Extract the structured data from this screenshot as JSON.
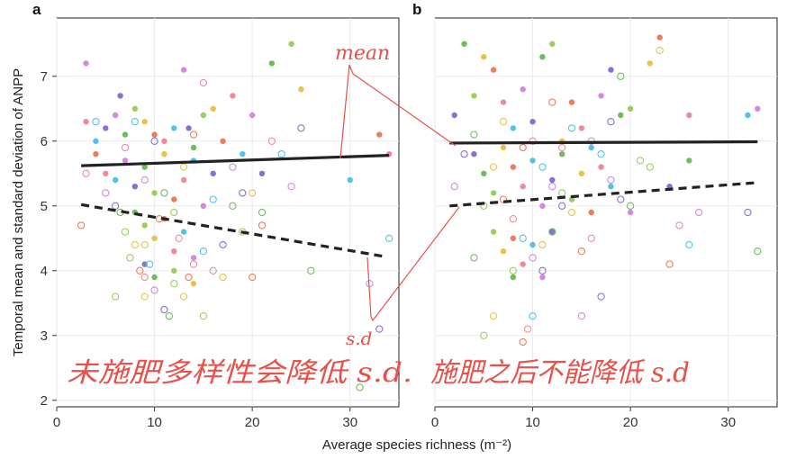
{
  "chart_data": [
    {
      "type": "scatter",
      "panel_label": "a",
      "xlim": [
        0,
        35
      ],
      "ylim": [
        1.9,
        7.9
      ],
      "xticks": [
        "0",
        "10",
        "20",
        "30"
      ],
      "yticks": [
        "2",
        "3",
        "4",
        "5",
        "6",
        "7"
      ],
      "grid": true,
      "series": [
        {
          "style": "filled",
          "points": [
            [
              3,
              6.3
            ],
            [
              4,
              6.0
            ],
            [
              6,
              6.4
            ],
            [
              6.5,
              6.7
            ],
            [
              7,
              6.1
            ],
            [
              8,
              6.5
            ],
            [
              9,
              6.3
            ],
            [
              10,
              6.1
            ],
            [
              11,
              6.0
            ],
            [
              12,
              6.2
            ],
            [
              13,
              7.1
            ],
            [
              13.5,
              6.2
            ],
            [
              14,
              5.9
            ],
            [
              15,
              6.4
            ],
            [
              16,
              6.5
            ],
            [
              17,
              6.0
            ],
            [
              18,
              6.7
            ],
            [
              19,
              5.8
            ],
            [
              20,
              6.4
            ],
            [
              21,
              5.5
            ],
            [
              22,
              7.2
            ],
            [
              24,
              7.5
            ],
            [
              25,
              6.8
            ],
            [
              4,
              5.8
            ],
            [
              5,
              5.5
            ],
            [
              6,
              5.4
            ],
            [
              7,
              5.7
            ],
            [
              8,
              5.3
            ],
            [
              9,
              5.6
            ],
            [
              10,
              5.2
            ],
            [
              11,
              5.8
            ],
            [
              12,
              5.1
            ],
            [
              13,
              5.4
            ],
            [
              14,
              5.7
            ],
            [
              15,
              5.0
            ],
            [
              16,
              5.5
            ],
            [
              8,
              4.9
            ],
            [
              9,
              4.7
            ],
            [
              10,
              4.5
            ],
            [
              11,
              4.8
            ],
            [
              12,
              4.3
            ],
            [
              13,
              4.6
            ],
            [
              14,
              4.2
            ],
            [
              9,
              4.1
            ],
            [
              10,
              3.9
            ],
            [
              12,
              4.0
            ],
            [
              14,
              3.8
            ],
            [
              33,
              6.1
            ],
            [
              34,
              5.8
            ],
            [
              30,
              5.4
            ],
            [
              3,
              7.2
            ],
            [
              5,
              6.2
            ]
          ]
        },
        {
          "style": "open",
          "points": [
            [
              2.5,
              4.7
            ],
            [
              3,
              5.5
            ],
            [
              4,
              6.3
            ],
            [
              5,
              5.2
            ],
            [
              6,
              5.0
            ],
            [
              6.5,
              4.9
            ],
            [
              7,
              4.6
            ],
            [
              8,
              4.4
            ],
            [
              8.5,
              4.0
            ],
            [
              9,
              3.9
            ],
            [
              9.5,
              4.1
            ],
            [
              10,
              3.7
            ],
            [
              11,
              3.4
            ],
            [
              11.5,
              3.3
            ],
            [
              12,
              3.8
            ],
            [
              13,
              3.6
            ],
            [
              13.5,
              3.9
            ],
            [
              14,
              4.1
            ],
            [
              15,
              4.3
            ],
            [
              16,
              4.0
            ],
            [
              17,
              4.4
            ],
            [
              18,
              5.0
            ],
            [
              19,
              4.6
            ],
            [
              20,
              5.2
            ],
            [
              21,
              4.7
            ],
            [
              22,
              6.0
            ],
            [
              23,
              5.8
            ],
            [
              24,
              5.3
            ],
            [
              25,
              6.2
            ],
            [
              26,
              4.0
            ],
            [
              15,
              3.3
            ],
            [
              17,
              3.9
            ],
            [
              20,
              3.9
            ],
            [
              7,
              5.9
            ],
            [
              8,
              6.3
            ],
            [
              9,
              5.4
            ],
            [
              10,
              6.0
            ],
            [
              11,
              5.2
            ],
            [
              12,
              4.9
            ],
            [
              13,
              5.6
            ],
            [
              14,
              6.1
            ],
            [
              15,
              6.9
            ],
            [
              16,
              5.1
            ],
            [
              18,
              5.6
            ],
            [
              19,
              5.2
            ],
            [
              21,
              4.9
            ],
            [
              7.5,
              4.2
            ],
            [
              9,
              4.4
            ],
            [
              10.5,
              4.8
            ],
            [
              12.5,
              4.5
            ],
            [
              34,
              4.5
            ],
            [
              32,
              3.8
            ],
            [
              33,
              3.1
            ],
            [
              31,
              2.2
            ],
            [
              6,
              3.6
            ],
            [
              9,
              3.6
            ]
          ]
        }
      ],
      "fits": [
        {
          "name": "mean",
          "style": "solid",
          "x": [
            2.5,
            34
          ],
          "y": [
            5.62,
            5.78
          ]
        },
        {
          "name": "s.d.",
          "style": "dashed",
          "x": [
            2.5,
            33.5
          ],
          "y": [
            5.02,
            4.22
          ]
        }
      ]
    },
    {
      "type": "scatter",
      "panel_label": "b",
      "xlim": [
        0,
        35
      ],
      "ylim": [
        1.9,
        7.9
      ],
      "xticks": [
        "0",
        "10",
        "20",
        "30"
      ],
      "yticks": [],
      "grid": true,
      "series": [
        {
          "style": "filled",
          "points": [
            [
              2,
              6.4
            ],
            [
              3,
              7.5
            ],
            [
              4,
              6.7
            ],
            [
              5,
              7.3
            ],
            [
              6,
              7.1
            ],
            [
              7,
              6.6
            ],
            [
              8,
              6.2
            ],
            [
              9,
              6.8
            ],
            [
              10,
              6.3
            ],
            [
              11,
              7.3
            ],
            [
              12,
              7.5
            ],
            [
              13,
              6.0
            ],
            [
              14,
              6.6
            ],
            [
              15,
              6.2
            ],
            [
              16,
              5.9
            ],
            [
              17,
              6.7
            ],
            [
              18,
              7.1
            ],
            [
              19,
              6.4
            ],
            [
              20,
              6.5
            ],
            [
              22,
              7.2
            ],
            [
              23,
              7.6
            ],
            [
              26,
              6.4
            ],
            [
              32,
              6.4
            ],
            [
              33,
              6.5
            ],
            [
              4,
              5.8
            ],
            [
              5,
              5.5
            ],
            [
              6,
              5.2
            ],
            [
              7,
              5.9
            ],
            [
              8,
              5.6
            ],
            [
              9,
              5.3
            ],
            [
              10,
              5.7
            ],
            [
              11,
              5.0
            ],
            [
              12,
              5.4
            ],
            [
              13,
              5.8
            ],
            [
              14,
              5.1
            ],
            [
              15,
              5.5
            ],
            [
              16,
              4.9
            ],
            [
              17,
              5.6
            ],
            [
              18,
              5.3
            ],
            [
              20,
              4.9
            ],
            [
              24,
              5.3
            ],
            [
              26,
              5.7
            ],
            [
              6,
              4.6
            ],
            [
              7,
              4.3
            ],
            [
              8,
              4.5
            ],
            [
              9,
              4.1
            ],
            [
              10,
              4.4
            ],
            [
              11,
              3.9
            ],
            [
              12,
              4.6
            ],
            [
              8,
              3.9
            ]
          ]
        },
        {
          "style": "open",
          "points": [
            [
              2,
              5.3
            ],
            [
              3,
              5.8
            ],
            [
              4,
              6.1
            ],
            [
              5,
              5.0
            ],
            [
              6,
              5.6
            ],
            [
              7,
              5.1
            ],
            [
              8,
              4.8
            ],
            [
              9,
              4.5
            ],
            [
              10,
              4.2
            ],
            [
              11,
              4.0
            ],
            [
              12,
              4.6
            ],
            [
              13,
              5.2
            ],
            [
              14,
              4.9
            ],
            [
              15,
              4.3
            ],
            [
              16,
              4.5
            ],
            [
              17,
              5.8
            ],
            [
              18,
              5.4
            ],
            [
              19,
              5.1
            ],
            [
              20,
              5.0
            ],
            [
              22,
              5.6
            ],
            [
              23,
              7.4
            ],
            [
              24,
              4.1
            ],
            [
              25,
              4.7
            ],
            [
              26,
              4.4
            ],
            [
              27,
              4.9
            ],
            [
              32,
              4.9
            ],
            [
              33,
              4.3
            ],
            [
              5,
              3.0
            ],
            [
              6,
              3.3
            ],
            [
              9,
              2.9
            ],
            [
              9.5,
              3.1
            ],
            [
              10,
              3.3
            ],
            [
              15,
              3.3
            ],
            [
              17,
              3.6
            ],
            [
              4,
              4.2
            ],
            [
              8,
              4.0
            ],
            [
              11,
              4.4
            ],
            [
              12,
              6.6
            ],
            [
              13,
              5.9
            ],
            [
              14,
              6.2
            ],
            [
              16,
              6.0
            ],
            [
              18,
              6.3
            ],
            [
              19,
              7.0
            ],
            [
              21,
              5.7
            ],
            [
              7,
              6.3
            ],
            [
              9,
              5.9
            ],
            [
              10,
              6.0
            ],
            [
              11,
              5.6
            ],
            [
              12,
              5.3
            ],
            [
              13,
              5.0
            ]
          ]
        }
      ],
      "fits": [
        {
          "name": "mean",
          "style": "solid",
          "x": [
            1.5,
            33
          ],
          "y": [
            5.97,
            5.99
          ]
        },
        {
          "name": "s.d.",
          "style": "dashed",
          "x": [
            1.5,
            33
          ],
          "y": [
            5.0,
            5.36
          ]
        }
      ]
    }
  ],
  "ylabel": "Temporal mean and standard deviation of ANPP",
  "xlabel": "Average species richness (m⁻²)",
  "palette": [
    "#f08a9a",
    "#8a6fd4",
    "#e8c24a",
    "#4fc3e8",
    "#6bbf59",
    "#f07a5a",
    "#d48ad8",
    "#9acd62"
  ],
  "annotations": {
    "mean_note": "mean",
    "sd_note": "s.d",
    "note_left": "未施肥多样性会降低 s.d.",
    "note_right": "施肥之后不能降低 s.d",
    "color": "#e8504a"
  }
}
